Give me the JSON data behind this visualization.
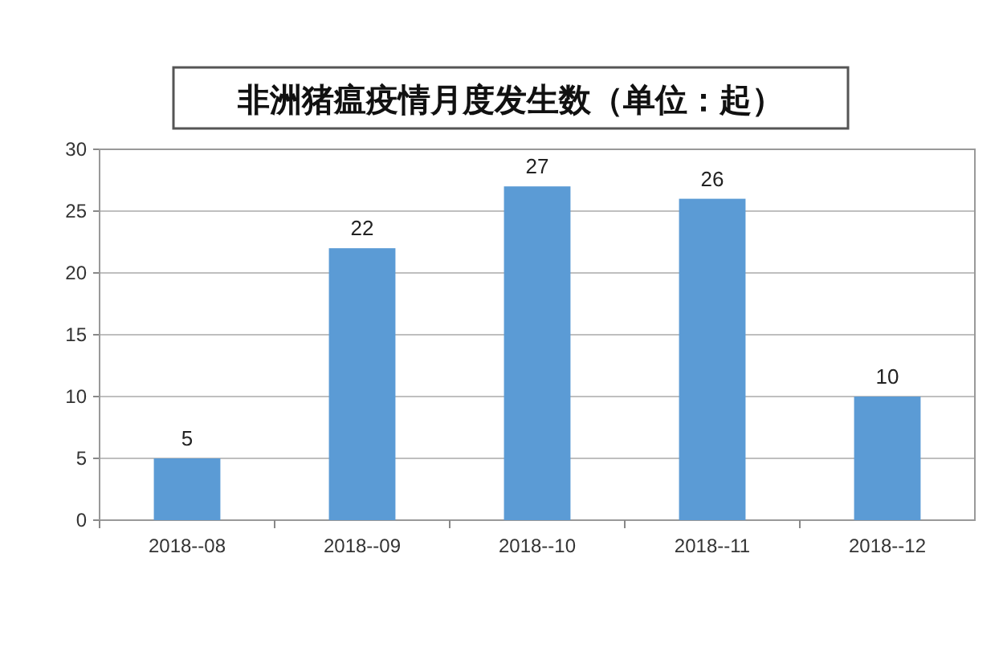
{
  "chart_data": {
    "type": "bar",
    "title": "非洲猪瘟疫情月度发生数（单位：起）",
    "categories": [
      "2018--08",
      "2018--09",
      "2018--10",
      "2018--11",
      "2018--12"
    ],
    "values": [
      5,
      22,
      27,
      26,
      10
    ],
    "color": "#5b9bd5",
    "ylim": [
      0,
      30
    ],
    "yticks": [
      0,
      5,
      10,
      15,
      20,
      25,
      30
    ],
    "grid": "y",
    "data_labels": true
  }
}
